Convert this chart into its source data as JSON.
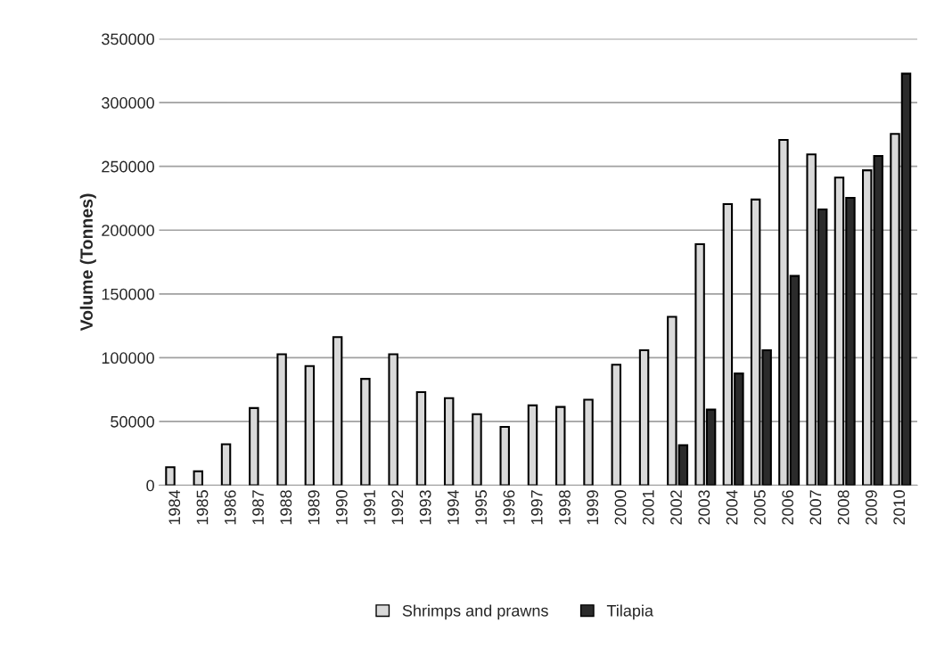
{
  "chart_data": {
    "type": "bar",
    "ylabel": "Volume (Tonnes)",
    "categories": [
      "1984",
      "1985",
      "1986",
      "1987",
      "1988",
      "1989",
      "1990",
      "1991",
      "1992",
      "1993",
      "1994",
      "1995",
      "1996",
      "1997",
      "1998",
      "1999",
      "2000",
      "2001",
      "2002",
      "2003",
      "2004",
      "2005",
      "2006",
      "2007",
      "2008",
      "2009",
      "2010"
    ],
    "series": [
      {
        "name": "Shrimps and prawns",
        "color": "#d9d9d9",
        "values": [
          14200,
          10900,
          32100,
          60500,
          102700,
          93500,
          116200,
          83400,
          102700,
          73000,
          68300,
          55700,
          45800,
          62600,
          61400,
          67100,
          94500,
          105800,
          132000,
          189000,
          220400,
          224000,
          270700,
          259400,
          241200,
          246900,
          275400
        ]
      },
      {
        "name": "Tilapia",
        "color": "#2b2b2b",
        "values": [
          null,
          null,
          null,
          null,
          null,
          null,
          null,
          null,
          null,
          null,
          null,
          null,
          null,
          null,
          null,
          null,
          null,
          null,
          31400,
          59300,
          87600,
          105800,
          164100,
          216300,
          225300,
          258200,
          322700
        ]
      }
    ],
    "ylim": [
      0,
      350000
    ],
    "yticks": [
      0,
      50000,
      100000,
      150000,
      200000,
      250000,
      300000,
      350000
    ],
    "grid": "y",
    "legend": "bottom"
  }
}
